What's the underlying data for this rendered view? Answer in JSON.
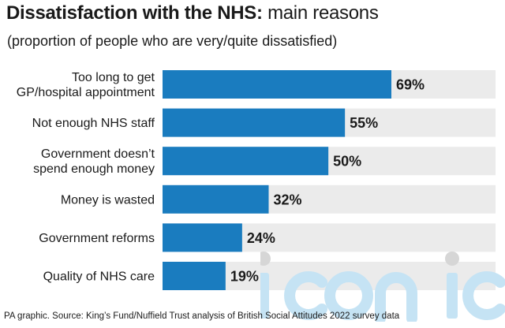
{
  "title": {
    "bold": "Dissatisfaction with the NHS:",
    "regular": "main reasons"
  },
  "subtitle": "(proportion of people who are very/quite dissatisfied)",
  "source": "PA graphic. Source: King’s Fund/Nuffield Trust analysis of British Social Attitudes 2022 survey data",
  "watermark": "iconic",
  "colors": {
    "bar": "#1a7cbf",
    "track": "#ebebeb",
    "text": "#1a1a1a",
    "watermark": "#c5e3f4"
  },
  "chart_data": {
    "type": "bar",
    "orientation": "horizontal",
    "categories": [
      [
        "Too long to get",
        "GP/hospital appointment"
      ],
      [
        "Not enough NHS staff"
      ],
      [
        "Government doesn’t",
        "spend enough money"
      ],
      [
        "Money is wasted"
      ],
      [
        "Government reforms"
      ],
      [
        "Quality of NHS care"
      ]
    ],
    "values": [
      69,
      55,
      50,
      32,
      24,
      19
    ],
    "value_labels": [
      "69%",
      "55%",
      "50%",
      "32%",
      "24%",
      "19%"
    ],
    "unit": "%",
    "xlim": [
      0,
      100
    ],
    "grid": false,
    "legend": "none"
  }
}
